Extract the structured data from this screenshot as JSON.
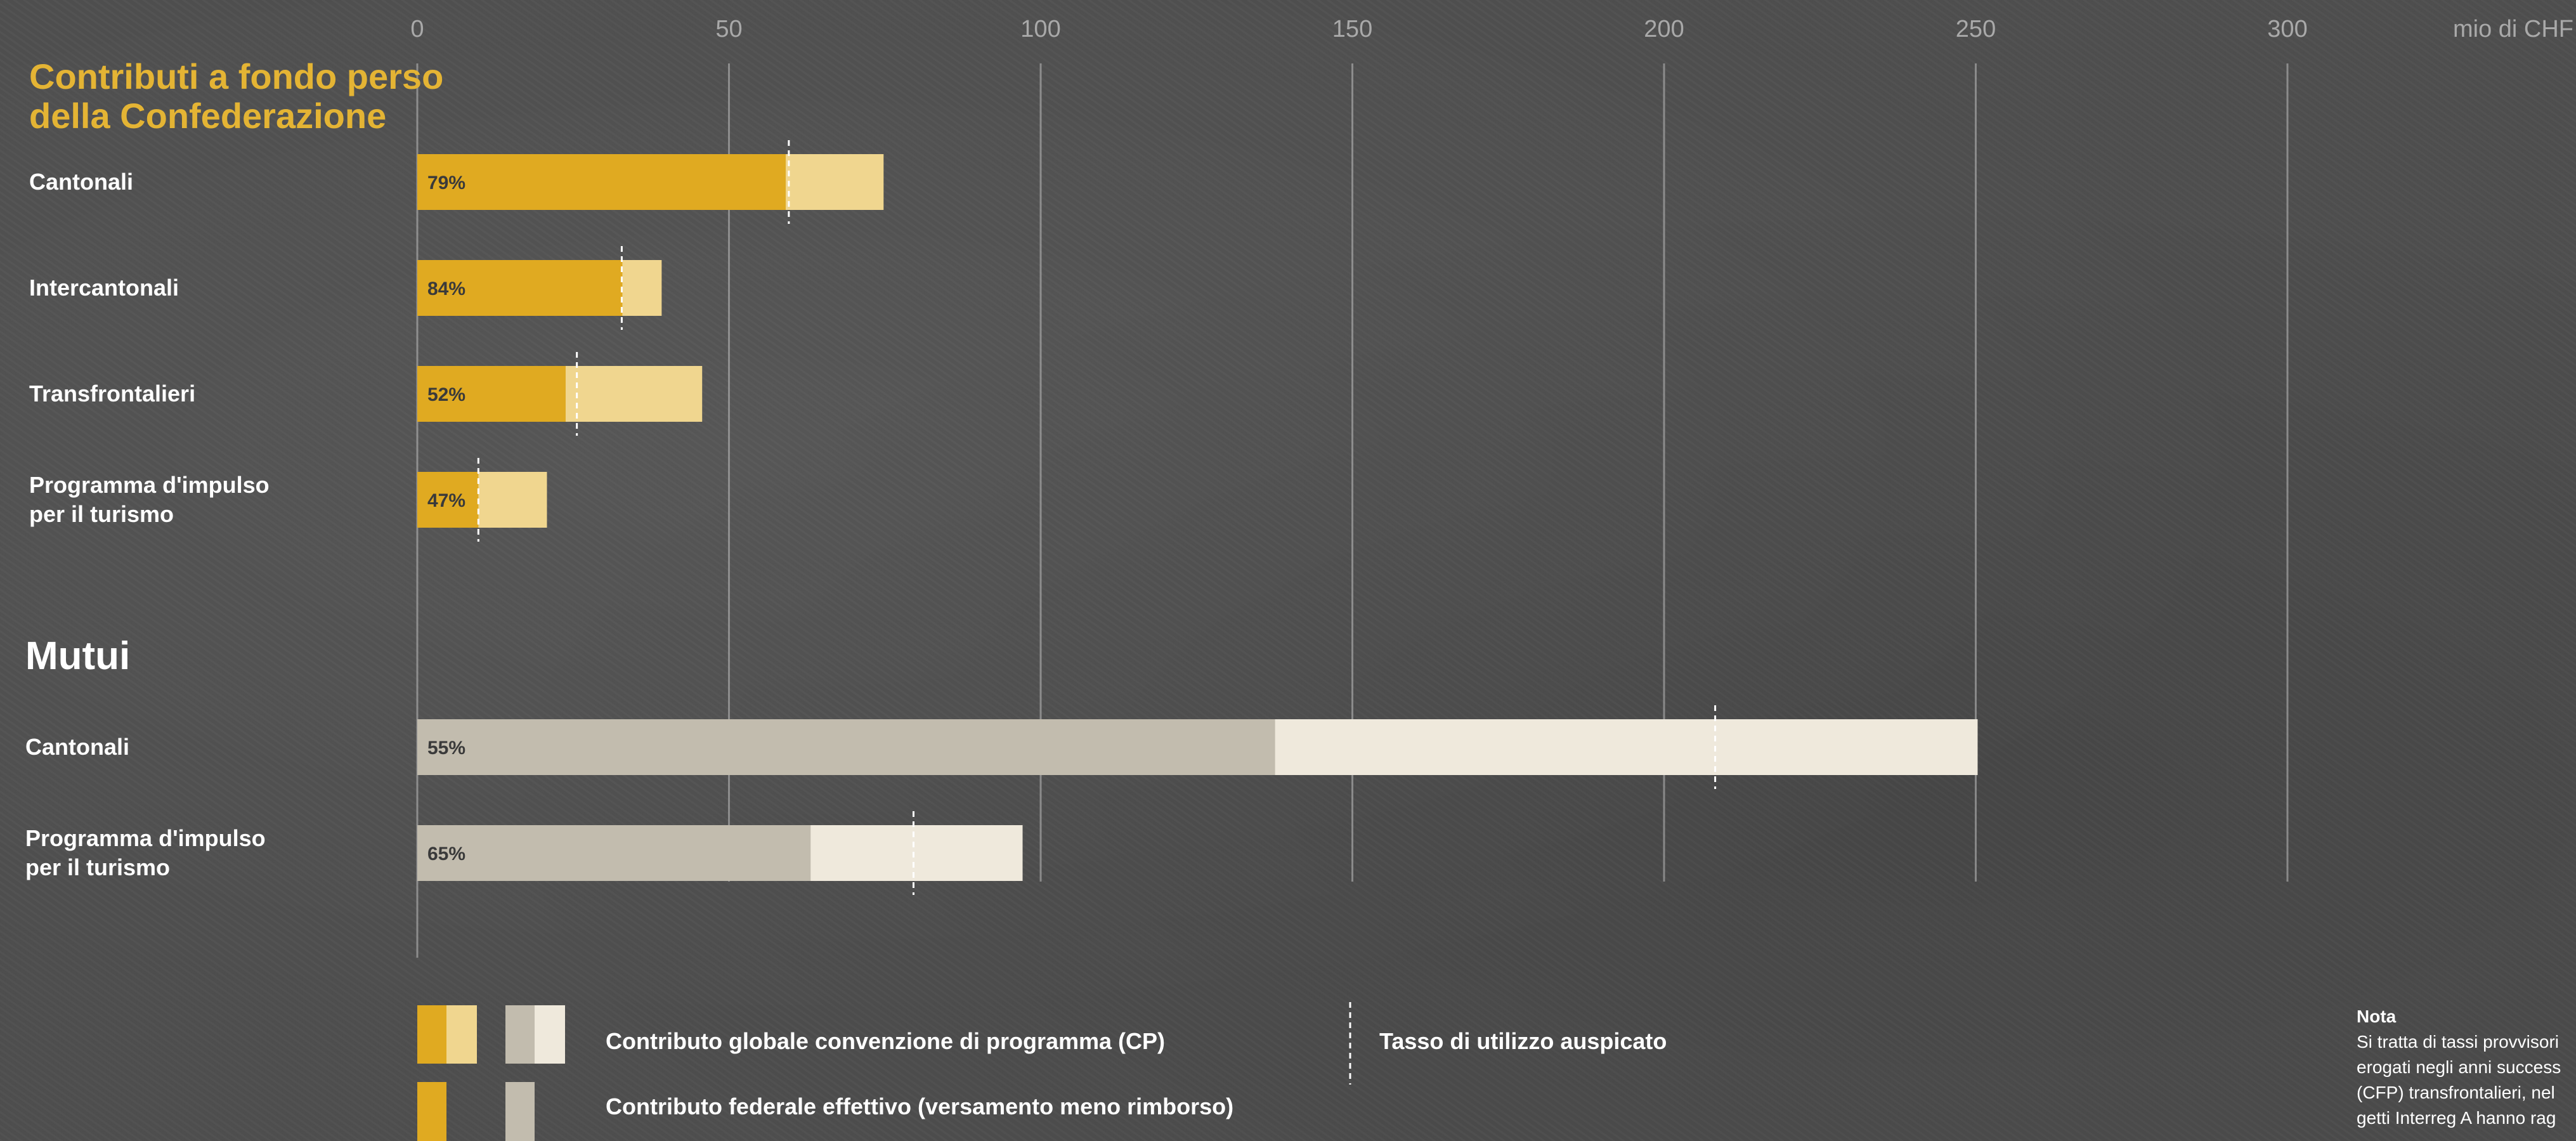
{
  "chart_data": {
    "type": "bar",
    "unit_label": "mio di CHF",
    "xlim": [
      0,
      350
    ],
    "x_ticks": [
      0,
      50,
      100,
      150,
      200,
      250,
      300
    ],
    "grid": true,
    "colors": {
      "contributi_actual": "#e0aa21",
      "contributi_total": "#f0d68f",
      "mutui_actual": "#c2bcae",
      "mutui_total": "#efe9dc",
      "target_line": "#ffffff"
    },
    "groups": [
      {
        "title": "Contributi a fondo perso della Confederazione",
        "title_lines": [
          "Contributi a fondo perso",
          "della Confederazione"
        ],
        "style": "contributi",
        "rows": [
          {
            "label_lines": [
              "Cantonali"
            ],
            "total": 74.8,
            "actual": 59.1,
            "target": 59.6,
            "pct_label": "79%"
          },
          {
            "label_lines": [
              "Intercantonali"
            ],
            "total": 39.2,
            "actual": 32.9,
            "target": 32.8,
            "pct_label": "84%"
          },
          {
            "label_lines": [
              "Transfrontalieri"
            ],
            "total": 45.7,
            "actual": 23.8,
            "target": 25.6,
            "pct_label": "52%"
          },
          {
            "label_lines": [
              "Programma d'impulso",
              "per il turismo"
            ],
            "total": 20.8,
            "actual": 9.8,
            "target": 9.8,
            "pct_label": "47%"
          }
        ]
      },
      {
        "title": "Mutui",
        "title_lines": [
          "Mutui"
        ],
        "style": "mutui",
        "rows": [
          {
            "label_lines": [
              "Cantonali"
            ],
            "total": 250.3,
            "actual": 137.6,
            "target": 208.2,
            "pct_label": "55%"
          },
          {
            "label_lines": [
              "Programma d'impulso",
              "per il turismo"
            ],
            "total": 97.1,
            "actual": 63.1,
            "target": 79.6,
            "pct_label": "65%"
          }
        ]
      }
    ],
    "legend": {
      "total_label": "Contributo globale convenzione di programma (CP)",
      "actual_label": "Contributo federale effettivo (versamento meno rimborso)",
      "target_label": "Tasso di utilizzo auspicato"
    },
    "note": {
      "title": "Nota",
      "lines": [
        "Si tratta di tassi provvisori",
        "erogati negli anni success",
        "(CFP) transfrontalieri, nel",
        "getti Interreg A hanno rag"
      ]
    }
  }
}
